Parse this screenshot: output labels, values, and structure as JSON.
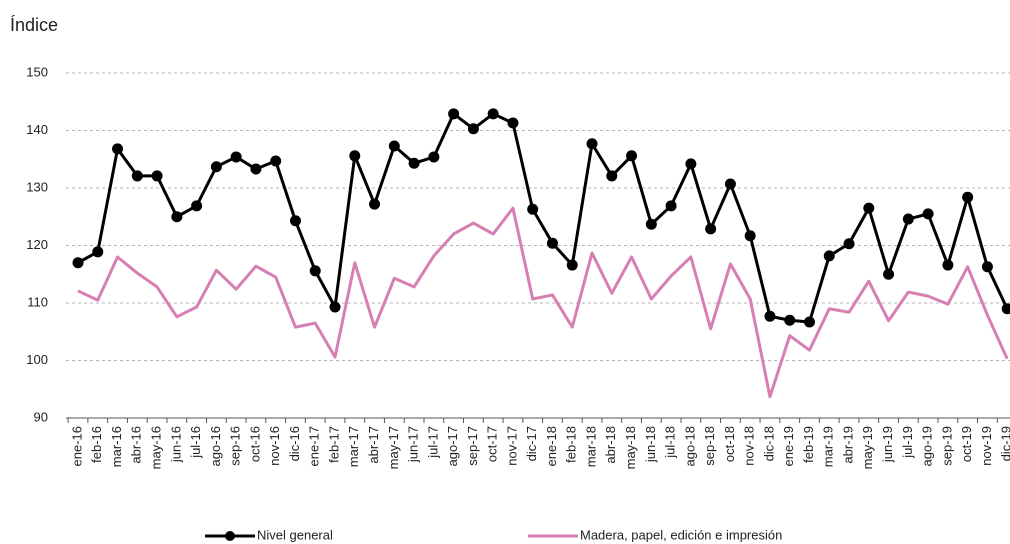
{
  "chart_data": {
    "type": "line",
    "y_label": "Índice",
    "categories": [
      "ene-16",
      "feb-16",
      "mar-16",
      "abr-16",
      "may-16",
      "jun-16",
      "jul-16",
      "ago-16",
      "sep-16",
      "oct-16",
      "nov-16",
      "dic-16",
      "ene-17",
      "feb-17",
      "mar-17",
      "abr-17",
      "may-17",
      "jun-17",
      "jul-17",
      "ago-17",
      "sep-17",
      "oct-17",
      "nov-17",
      "dic-17",
      "ene-18",
      "feb-18",
      "mar-18",
      "abr-18",
      "may-18",
      "jun-18",
      "jul-18",
      "ago-18",
      "sep-18",
      "oct-18",
      "nov-18",
      "dic-18",
      "ene-19",
      "feb-19",
      "mar-19",
      "abr-19",
      "may-19",
      "jun-19",
      "jul-19",
      "ago-19",
      "sep-19",
      "oct-19",
      "nov-19",
      "dic-19"
    ],
    "series": [
      {
        "name": "Nivel general",
        "color": "#000000",
        "markers": true,
        "values": [
          117,
          118.9,
          136.8,
          132.1,
          132.1,
          125,
          126.9,
          133.7,
          135.4,
          133.3,
          134.7,
          124.3,
          115.6,
          109.3,
          135.6,
          127.2,
          137.3,
          134.3,
          135.4,
          142.9,
          140.3,
          142.9,
          141.3,
          126.3,
          120.4,
          116.6,
          137.7,
          132.1,
          135.6,
          123.7,
          126.9,
          134.2,
          122.9,
          130.7,
          121.7,
          107.7,
          107,
          106.7,
          118.2,
          120.3,
          126.5,
          115,
          124.6,
          125.5,
          116.6,
          128.4,
          116.3,
          109
        ]
      },
      {
        "name": "Madera, papel, edición e impresión",
        "color": "#d77fb2",
        "markers": false,
        "values": [
          112.1,
          110.5,
          118,
          115.2,
          112.8,
          107.6,
          109.3,
          115.7,
          112.4,
          116.4,
          114.5,
          105.8,
          106.5,
          100.6,
          117,
          105.8,
          114.3,
          112.8,
          118.2,
          122,
          123.9,
          122,
          126.5,
          110.7,
          111.4,
          105.8,
          118.7,
          111.7,
          118,
          110.7,
          114.7,
          118,
          105.5,
          116.8,
          110.7,
          93.7,
          104.3,
          101.8,
          109,
          108.4,
          113.8,
          106.9,
          111.9,
          111.2,
          109.8,
          116.3,
          107.9,
          100.3
        ]
      }
    ],
    "ylim": [
      90,
      150
    ],
    "yticks": [
      90,
      100,
      110,
      120,
      130,
      140,
      150
    ],
    "grid": true
  }
}
